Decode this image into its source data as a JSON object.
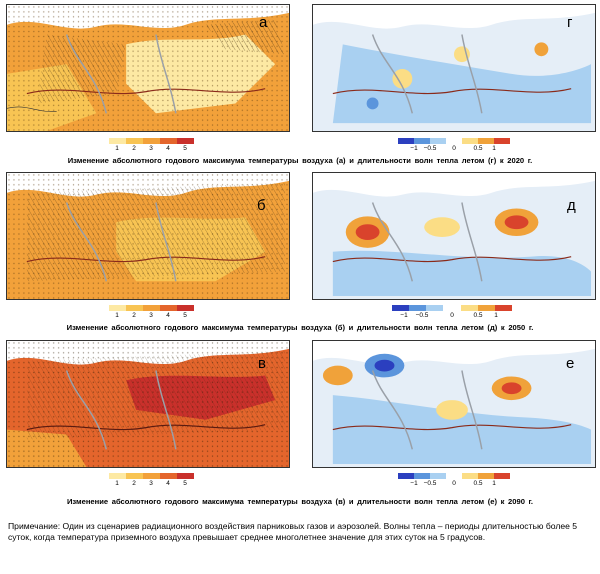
{
  "panels": {
    "a": {
      "letter": "а"
    },
    "b": {
      "letter": "б"
    },
    "c": {
      "letter": "в"
    },
    "d": {
      "letter": "г"
    },
    "e": {
      "letter": "д"
    },
    "f": {
      "letter": "е"
    }
  },
  "legend_left": {
    "ticks": [
      "1",
      "2",
      "3",
      "4",
      "5"
    ],
    "colors": [
      "#fde9a3",
      "#f8c453",
      "#f2a13a",
      "#e4652c",
      "#c9302b"
    ]
  },
  "legend_right": {
    "ticks": [
      "−1",
      "−0.5",
      "0",
      "0.5",
      "1"
    ],
    "colors": [
      "#2b3fbf",
      "#5b95dc",
      "#a9d0f1",
      "#e5eef7",
      "#fbdd85",
      "#f0a23a",
      "#d9432c"
    ]
  },
  "captions": {
    "row1": "Изменение абсолютного годового максимума температуры воздуха (а) и длительности волн тепла летом (г) к 2020 г.",
    "row2": "Изменение абсолютного годового максимума температуры воздуха (б) и длительности волн тепла летом (д) к 2050 г.",
    "row3": "Изменение абсолютного годового максимума температуры воздуха (в) и длительности волн тепла летом (е) к 2090 г."
  },
  "note": "Примечание: Один из сценариев радиационного воздействия парниковых газов и аэрозолей. Волны тепла – периоды длительностью более 5 суток, когда температура приземного воздуха превышает среднее многолетнее значение для этих суток на 5 градусов.",
  "colors": {
    "land_light": "#fde9a3",
    "land_mid": "#f8c453",
    "land_orange": "#f2a13a",
    "land_red": "#e4652c",
    "sea": "#ffffff",
    "blue_light": "#a9d0f1",
    "border": "#8a2a1a",
    "river": "#9aa0a8"
  }
}
